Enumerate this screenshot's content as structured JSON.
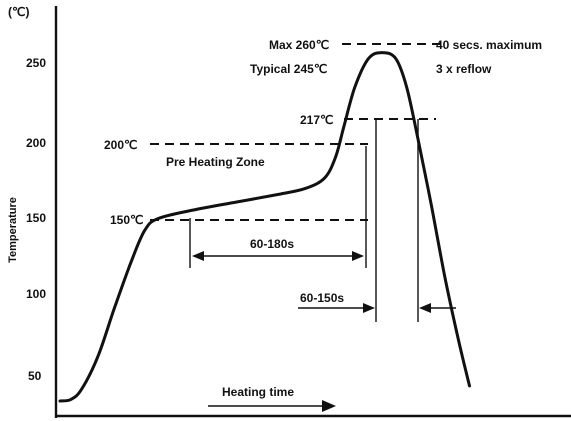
{
  "chart_data": {
    "type": "line",
    "title": "",
    "xlabel": "Heating time",
    "ylabel": "Temperature",
    "unit_label": "(℃)",
    "y_ticks": [
      "50",
      "100",
      "150",
      "200",
      "250"
    ],
    "series": [
      {
        "points": [
          [
            0,
            30
          ],
          [
            4,
            31
          ],
          [
            8,
            38
          ],
          [
            14,
            60
          ],
          [
            20,
            92
          ],
          [
            26,
            122
          ],
          [
            31,
            143
          ],
          [
            36,
            151
          ],
          [
            50,
            157
          ],
          [
            65,
            162
          ],
          [
            80,
            167
          ],
          [
            90,
            171
          ],
          [
            97,
            178
          ],
          [
            101,
            192
          ],
          [
            104,
            212
          ],
          [
            108,
            238
          ],
          [
            113,
            257
          ],
          [
            118,
            261
          ],
          [
            123,
            257
          ],
          [
            127,
            238
          ],
          [
            131,
            205
          ],
          [
            136,
            160
          ],
          [
            141,
            112
          ],
          [
            146,
            70
          ],
          [
            150,
            40
          ]
        ]
      }
    ],
    "annotations": {
      "max": "Max 260℃",
      "typical": "Typical 245℃",
      "forty": "40 secs. maximum",
      "reflow": "3 x reflow",
      "t217": "217℃",
      "t200": "200℃",
      "preheat_zone": "Pre Heating Zone",
      "t150": "150℃",
      "preheat_time": "60-180s",
      "reflow_time": "60-150s"
    }
  }
}
